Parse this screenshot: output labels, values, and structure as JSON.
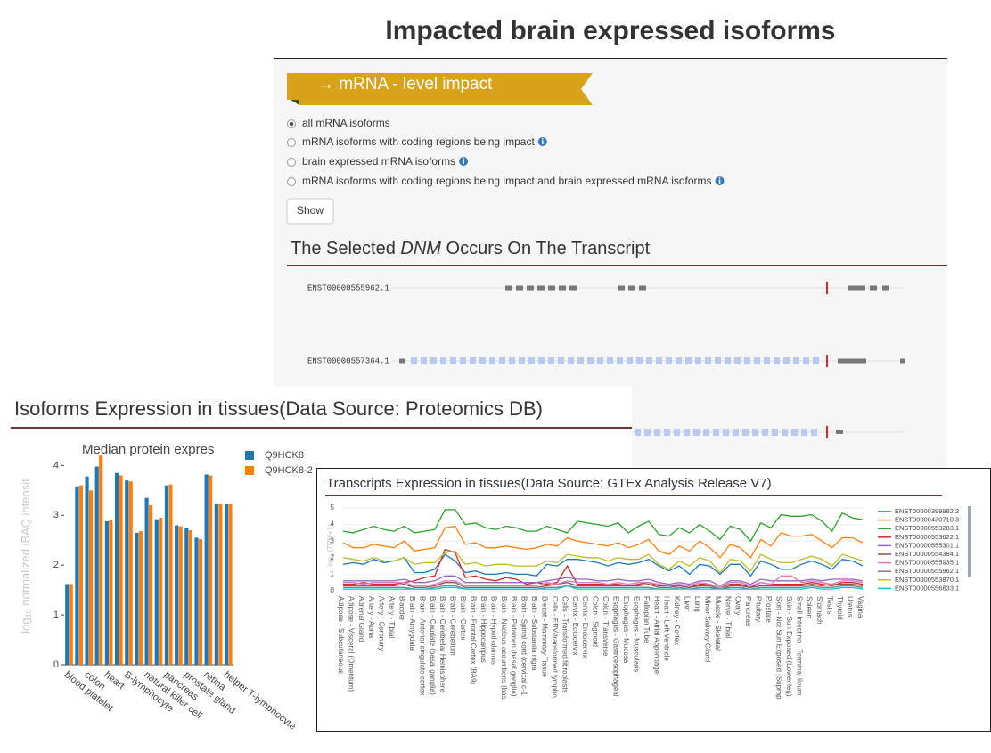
{
  "header": {
    "title": "Impacted brain expressed isoforms"
  },
  "ribbon": "→ mRNA - level impact",
  "options": [
    "all mRNA isoforms",
    "mRNA isoforms with coding regions being impact",
    "brain expressed mRNA isoforms",
    "mRNA isoforms with coding regions being impact and brain expressed mRNA isoforms"
  ],
  "button": "Show",
  "transcript_section": {
    "title_before": "The Selected ",
    "title_em": "DNM",
    "title_after": " Occurs On The Transcript",
    "transcripts": [
      "ENST00000555962.1",
      "ENST00000557364.1"
    ]
  },
  "chart_data": [
    {
      "type": "bar",
      "heading": "Isoforms Expression in tissues(Data Source: Proteomics DB)",
      "title": "Median protein expres",
      "ylabel": [
        "log",
        "10",
        " normalized iBAQ intensit"
      ],
      "categories": [
        "blood platelet",
        null,
        "colon",
        null,
        "heart",
        null,
        "B-lymphocyte",
        null,
        "natural killer cell",
        null,
        "pancreas",
        null,
        "prostate gland",
        null,
        "retina",
        null,
        "helper T-lymphocyte"
      ],
      "series": [
        {
          "name": "Q9HCK8",
          "color": "#1f77b4",
          "values": [
            1.62,
            3.58,
            3.78,
            3.98,
            2.88,
            3.85,
            3.7,
            2.65,
            3.35,
            2.92,
            3.6,
            2.8,
            2.75,
            2.55,
            3.82,
            3.22,
            3.22
          ]
        },
        {
          "name": "Q9HCK8-2",
          "color": "#ff7f0e",
          "values": [
            1.62,
            3.6,
            3.5,
            4.2,
            2.9,
            3.8,
            3.68,
            2.68,
            3.2,
            2.95,
            3.62,
            2.78,
            2.7,
            2.52,
            3.8,
            3.22,
            3.22
          ]
        }
      ],
      "ylim": [
        0,
        4.4
      ],
      "yticks": [
        0,
        1,
        2,
        3,
        4
      ]
    },
    {
      "type": "line",
      "heading": "Transcripts Expression in tissues(Data Source: GTEx Analysis Release V7)",
      "ylabel": [
        "log",
        "2",
        " (TPM+1)"
      ],
      "categories": [
        "Adipose - Subcutaneous",
        "Adipose - Visceral (Omentum)",
        "Adrenal Gland",
        "Artery - Aorta",
        "Artery - Coronary",
        "Artery - Tibial",
        "Bladder",
        "Brain - Amygdala",
        "Brain - Anterior cingulate cortex",
        "Brain - Caudate (basal ganglia)",
        "Brain - Cerebellar Hemisphere",
        "Brain - Cerebellum",
        "Brain - Cortex",
        "Brain - Frontal Cortex (BA9)",
        "Brain - Hippocampus",
        "Brain - Hypothalamus",
        "Brain - Nucleus accumbens (bas",
        "Brain - Putamen (basal ganglia)",
        "Brain - Spinal cord (cervical c-1",
        "Brain - Substantia nigra",
        "Breast - Mammary Tissue",
        "Cells - EBV-transformed lympho",
        "Cells - Transformed fibroblasts",
        "Cervix - Ectocervix",
        "Cervix - Endocervix",
        "Colon - Sigmoid",
        "Colon - Transverse",
        "Esophagus - Gastroesophageal .",
        "Esophagus - Mucosa",
        "Esophagus - Muscularis",
        "Fallopian Tube",
        "Heart - Atrial Appendage",
        "Heart - Left Ventricle",
        "Kidney - Cortex",
        "Liver",
        "Lung",
        "Minor Salivary Gland",
        "Muscle - Skeletal",
        "Nerve - Tibial",
        "Ovary",
        "Pancreas",
        "Pituitary",
        "Prostate",
        "Skin - Not Sun Exposed (Suprap",
        "Skin - Sun Exposed (Lower leg)",
        "Small Intestine - Terminal Ileum",
        "Spleen",
        "Stomach",
        "Testis",
        "Thyroid",
        "Uterus",
        "Vagina"
      ],
      "series": [
        {
          "name": "ENST00000399982.2",
          "color": "#1f77b4",
          "values": [
            1.6,
            1.7,
            1.6,
            1.9,
            1.7,
            1.8,
            2.0,
            1.1,
            1.1,
            1.3,
            2.2,
            1.8,
            1.1,
            1.2,
            1.0,
            1.0,
            1.1,
            1.0,
            1.0,
            0.9,
            1.6,
            1.5,
            1.9,
            1.9,
            1.8,
            1.7,
            1.5,
            1.7,
            1.6,
            1.7,
            1.9,
            1.5,
            1.2,
            1.5,
            1.0,
            1.6,
            1.5,
            1.0,
            1.6,
            1.6,
            0.9,
            1.8,
            1.6,
            1.3,
            1.3,
            1.6,
            1.8,
            1.6,
            1.3,
            1.9,
            1.8,
            1.5
          ]
        },
        {
          "name": "ENST00000430710.3",
          "color": "#ff7f0e",
          "values": [
            2.9,
            2.6,
            2.6,
            2.8,
            2.7,
            2.6,
            3.0,
            2.4,
            2.5,
            2.6,
            3.8,
            3.9,
            2.8,
            2.9,
            2.6,
            2.6,
            2.7,
            2.6,
            2.5,
            2.6,
            2.8,
            2.7,
            3.2,
            3.0,
            2.9,
            2.8,
            2.7,
            2.9,
            2.6,
            2.8,
            3.1,
            2.4,
            2.2,
            2.7,
            2.4,
            3.0,
            2.6,
            2.0,
            2.8,
            2.6,
            2.0,
            3.1,
            2.7,
            3.5,
            3.3,
            3.3,
            3.4,
            3.0,
            2.6,
            3.2,
            3.2,
            2.9
          ]
        },
        {
          "name": "ENST00000553283.1",
          "color": "#2ca02c",
          "values": [
            3.6,
            3.5,
            3.7,
            3.9,
            3.7,
            3.6,
            3.9,
            3.5,
            3.6,
            3.7,
            4.9,
            4.9,
            4.0,
            4.1,
            3.8,
            3.7,
            3.9,
            3.8,
            3.6,
            3.6,
            3.9,
            3.7,
            3.5,
            4.2,
            4.1,
            4.0,
            3.9,
            4.1,
            3.5,
            3.9,
            4.2,
            3.4,
            3.3,
            3.8,
            3.5,
            4.0,
            3.6,
            3.1,
            3.9,
            3.7,
            3.0,
            4.1,
            3.8,
            4.6,
            4.5,
            4.5,
            4.6,
            4.2,
            3.6,
            4.7,
            4.4,
            4.3
          ]
        },
        {
          "name": "ENST00000553622.1",
          "color": "#d62728",
          "values": [
            0.4,
            0.4,
            0.5,
            0.4,
            0.4,
            0.4,
            0.5,
            0.6,
            0.8,
            0.9,
            2.5,
            2.3,
            0.8,
            0.9,
            0.7,
            0.6,
            0.8,
            0.7,
            0.4,
            0.5,
            0.4,
            0.5,
            1.5,
            0.4,
            0.4,
            0.4,
            0.4,
            0.4,
            0.3,
            0.4,
            0.5,
            0.3,
            0.3,
            0.3,
            0.2,
            0.4,
            0.4,
            0.2,
            0.4,
            0.4,
            0.2,
            0.5,
            0.4,
            0.4,
            0.4,
            0.4,
            0.5,
            0.4,
            0.3,
            0.5,
            0.5,
            0.4
          ]
        },
        {
          "name": "ENST00000555301.1",
          "color": "#9467bd",
          "values": [
            0.6,
            0.6,
            0.6,
            0.6,
            0.6,
            0.6,
            0.7,
            0.5,
            0.5,
            0.6,
            0.9,
            0.9,
            0.5,
            0.5,
            0.5,
            0.5,
            0.5,
            0.5,
            0.5,
            0.5,
            0.6,
            0.7,
            0.8,
            0.7,
            0.7,
            0.6,
            0.6,
            0.7,
            0.6,
            0.6,
            0.7,
            0.5,
            0.4,
            0.5,
            0.4,
            0.6,
            0.6,
            0.3,
            0.6,
            0.6,
            0.4,
            0.7,
            0.6,
            0.6,
            0.6,
            0.6,
            0.7,
            0.6,
            0.7,
            0.7,
            0.7,
            0.6
          ]
        },
        {
          "name": "ENST00000554384.1",
          "color": "#8c564b",
          "values": [
            0.3,
            0.3,
            0.3,
            0.3,
            0.3,
            0.3,
            0.4,
            0.2,
            0.2,
            0.3,
            0.5,
            0.5,
            0.2,
            0.2,
            0.2,
            0.2,
            0.2,
            0.2,
            0.2,
            0.2,
            0.3,
            0.4,
            0.5,
            0.3,
            0.3,
            0.3,
            0.3,
            0.3,
            0.3,
            0.3,
            0.4,
            0.2,
            0.2,
            0.3,
            0.2,
            0.3,
            0.3,
            0.1,
            0.3,
            0.3,
            0.2,
            0.3,
            0.3,
            0.3,
            0.3,
            0.3,
            0.4,
            0.3,
            0.4,
            0.4,
            0.4,
            0.3
          ]
        },
        {
          "name": "ENST00000555935.1",
          "color": "#e377c2",
          "values": [
            0.5,
            0.5,
            0.4,
            0.5,
            0.5,
            0.5,
            0.5,
            0.3,
            0.3,
            0.4,
            0.6,
            0.6,
            0.3,
            0.3,
            0.3,
            0.3,
            0.3,
            0.3,
            0.3,
            0.3,
            0.5,
            0.4,
            0.6,
            0.5,
            0.5,
            0.5,
            0.4,
            0.5,
            0.4,
            0.5,
            0.5,
            0.4,
            0.3,
            0.4,
            0.3,
            0.5,
            0.4,
            0.2,
            0.5,
            0.5,
            0.3,
            0.5,
            0.4,
            0.9,
            0.9,
            0.5,
            0.6,
            0.5,
            0.4,
            0.6,
            0.6,
            0.5
          ]
        },
        {
          "name": "ENST00000555962.1",
          "color": "#7f7f7f",
          "values": [
            0.2,
            0.2,
            0.2,
            0.2,
            0.2,
            0.2,
            0.2,
            0.1,
            0.1,
            0.2,
            0.3,
            0.3,
            0.1,
            0.1,
            0.1,
            0.1,
            0.1,
            0.1,
            0.1,
            0.1,
            0.2,
            0.2,
            0.3,
            0.2,
            0.2,
            0.2,
            0.2,
            0.2,
            0.2,
            0.2,
            0.2,
            0.1,
            0.1,
            0.2,
            0.1,
            0.2,
            0.2,
            0.1,
            0.2,
            0.2,
            0.1,
            0.2,
            0.2,
            0.2,
            0.2,
            0.2,
            0.3,
            0.2,
            0.2,
            0.3,
            0.3,
            0.2
          ]
        },
        {
          "name": "ENST00000553870.1",
          "color": "#bcbd22",
          "values": [
            2.0,
            1.9,
            1.8,
            2.0,
            1.8,
            1.8,
            2.0,
            1.6,
            1.7,
            1.7,
            2.3,
            2.4,
            1.6,
            1.7,
            1.5,
            1.6,
            1.6,
            1.5,
            1.5,
            1.5,
            1.8,
            1.7,
            2.2,
            2.1,
            2.0,
            2.0,
            1.8,
            2.0,
            1.9,
            1.9,
            2.2,
            1.6,
            1.3,
            1.8,
            1.5,
            2.0,
            1.8,
            1.1,
            1.9,
            1.8,
            1.2,
            2.2,
            1.9,
            1.7,
            1.7,
            1.9,
            2.1,
            1.9,
            1.5,
            2.2,
            2.0,
            1.8
          ]
        },
        {
          "name": "ENST00000556833.1",
          "color": "#17becf",
          "values": [
            0.1,
            0.1,
            0.1,
            0.1,
            0.1,
            0.1,
            0.1,
            0.1,
            0.1,
            0.1,
            0.2,
            0.2,
            0.1,
            0.1,
            0.1,
            0.1,
            0.1,
            0.1,
            0.1,
            0.1,
            0.1,
            0.1,
            0.3,
            0.1,
            0.1,
            0.1,
            0.1,
            0.1,
            0.1,
            0.1,
            0.1,
            0.1,
            0.1,
            0.1,
            0.1,
            0.1,
            0.1,
            0.1,
            0.1,
            0.1,
            0.1,
            0.1,
            0.1,
            0.1,
            0.1,
            0.1,
            0.2,
            0.1,
            0.1,
            0.2,
            0.2,
            0.1
          ]
        }
      ],
      "ylim": [
        0,
        5.4
      ],
      "yticks": [
        0,
        1,
        2,
        3,
        4,
        5
      ],
      "grid": true
    }
  ]
}
